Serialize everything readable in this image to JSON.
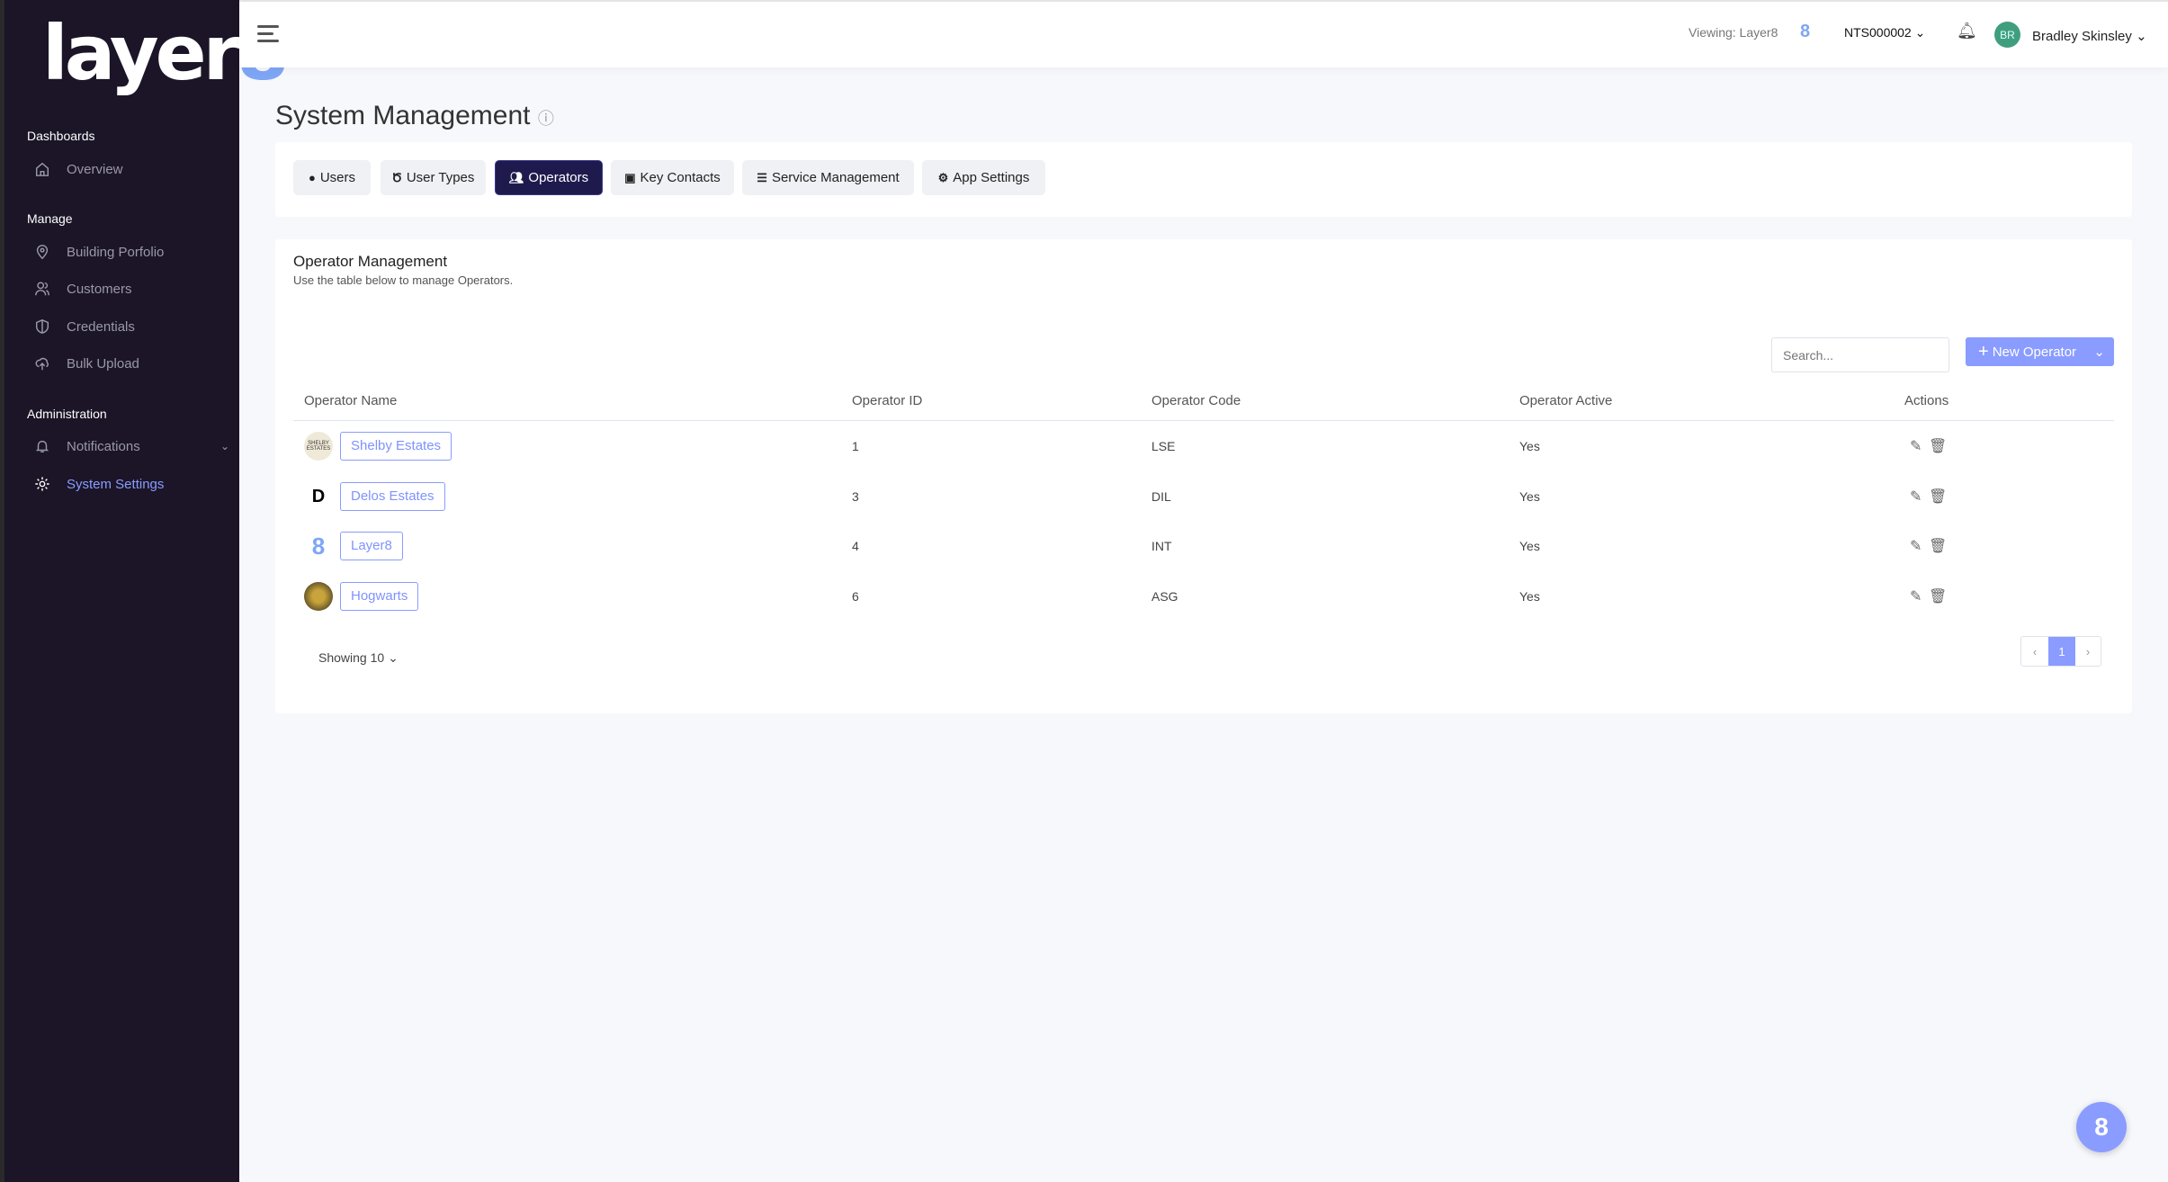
{
  "brand": {
    "logo_text": "layer",
    "logo_accent": "8",
    "accent_color": "#8a9cff",
    "sidebar_color": "#1b1527"
  },
  "sidebar": {
    "sections": [
      {
        "label": "Dashboards",
        "items": [
          {
            "label": "Overview",
            "icon": "home-icon"
          }
        ]
      },
      {
        "label": "Manage",
        "items": [
          {
            "label": "Building Porfolio",
            "icon": "map-pin-icon"
          },
          {
            "label": "Customers",
            "icon": "users-icon"
          },
          {
            "label": "Credentials",
            "icon": "shield-icon"
          },
          {
            "label": "Bulk Upload",
            "icon": "cloud-upload-icon"
          }
        ]
      },
      {
        "label": "Administration",
        "items": [
          {
            "label": "Notifications",
            "icon": "bell-icon"
          },
          {
            "label": "System Settings",
            "icon": "gear-icon",
            "active": true
          }
        ]
      }
    ]
  },
  "header": {
    "viewing": "Viewing: Layer8",
    "viewing_logo": "8",
    "account": "NTS000002",
    "user_initials": "BR",
    "user_name": "Bradley Skinsley"
  },
  "page": {
    "title": "System Management"
  },
  "tabs": [
    {
      "label": "Users",
      "icon": "user-circle-icon"
    },
    {
      "label": "User Types",
      "icon": "medal-icon"
    },
    {
      "label": "Operators",
      "icon": "users-icon",
      "active": true
    },
    {
      "label": "Key Contacts",
      "icon": "address-book-icon"
    },
    {
      "label": "Service Management",
      "icon": "server-icon"
    },
    {
      "label": "App Settings",
      "icon": "gears-icon"
    }
  ],
  "panel": {
    "title": "Operator Management",
    "subtitle": "Use the table below to manage Operators.",
    "search_placeholder": "Search...",
    "new_button": "New Operator"
  },
  "table": {
    "columns": [
      "Operator Name",
      "Operator ID",
      "Operator Code",
      "Operator Active",
      "Actions"
    ],
    "rows": [
      {
        "name": "Shelby Estates",
        "id": "1",
        "code": "LSE",
        "active": "Yes",
        "logo": "SHELBY ESTATES"
      },
      {
        "name": "Delos Estates",
        "id": "3",
        "code": "DIL",
        "active": "Yes",
        "logo": "D"
      },
      {
        "name": "Layer8",
        "id": "4",
        "code": "INT",
        "active": "Yes",
        "logo": "8"
      },
      {
        "name": "Hogwarts",
        "id": "6",
        "code": "ASG",
        "active": "Yes",
        "logo": "crest"
      }
    ]
  },
  "footer": {
    "showing": "Showing 10",
    "page": "1",
    "prev": "‹",
    "next": "›"
  },
  "fab": {
    "label": "8"
  }
}
